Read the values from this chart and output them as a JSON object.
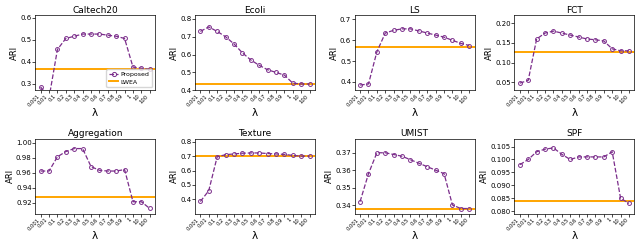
{
  "x_labels": [
    "0.001",
    "0.01",
    "0.1",
    "0.2",
    "0.3",
    "0.4",
    "0.5",
    "0.6",
    "0.7",
    "0.8",
    "0.9",
    "1",
    "10",
    "100"
  ],
  "proposed_color": "#7B2D8B",
  "lwea_color": "#FFA500",
  "plots": [
    {
      "title": "Caltech20",
      "ylabel": "ARI",
      "xlabel": "λ",
      "ylim": [
        0.27,
        0.61
      ],
      "yticks": [
        0.3,
        0.4,
        0.5,
        0.6
      ],
      "proposed": [
        0.285,
        0.235,
        0.455,
        0.505,
        0.515,
        0.525,
        0.525,
        0.525,
        0.52,
        0.515,
        0.505,
        0.375,
        0.37,
        0.365
      ],
      "lwea": 0.365,
      "show_legend": true
    },
    {
      "title": "Ecoli",
      "ylabel": "ARI",
      "xlabel": "λ",
      "ylim": [
        0.4,
        0.82
      ],
      "yticks": [
        0.4,
        0.5,
        0.6,
        0.7,
        0.8
      ],
      "proposed": [
        0.73,
        0.755,
        0.73,
        0.7,
        0.66,
        0.61,
        0.57,
        0.54,
        0.515,
        0.5,
        0.485,
        0.44,
        0.435,
        0.435
      ],
      "lwea": 0.435,
      "show_legend": false
    },
    {
      "title": "LS",
      "ylabel": "ARI",
      "xlabel": "λ",
      "ylim": [
        0.36,
        0.72
      ],
      "yticks": [
        0.4,
        0.5,
        0.6,
        0.7
      ],
      "proposed": [
        0.385,
        0.39,
        0.545,
        0.635,
        0.648,
        0.655,
        0.655,
        0.645,
        0.635,
        0.625,
        0.615,
        0.6,
        0.585,
        0.575
      ],
      "lwea": 0.568,
      "show_legend": false
    },
    {
      "title": "FCT",
      "ylabel": "ARI",
      "xlabel": "λ",
      "ylim": [
        0.03,
        0.22
      ],
      "yticks": [
        0.05,
        0.1,
        0.15,
        0.2
      ],
      "proposed": [
        0.048,
        0.055,
        0.16,
        0.175,
        0.18,
        0.175,
        0.17,
        0.165,
        0.16,
        0.158,
        0.155,
        0.135,
        0.13,
        0.13
      ],
      "lwea": 0.128,
      "show_legend": false
    },
    {
      "title": "Aggregation",
      "ylabel": "ARI",
      "xlabel": "λ",
      "ylim": [
        0.905,
        1.005
      ],
      "yticks": [
        0.92,
        0.94,
        0.96,
        0.98,
        1.0
      ],
      "proposed": [
        0.962,
        0.962,
        0.981,
        0.988,
        0.992,
        0.992,
        0.968,
        0.963,
        0.962,
        0.962,
        0.964,
        0.921,
        0.921,
        0.912
      ],
      "lwea": 0.928,
      "show_legend": false
    },
    {
      "title": "Texture",
      "ylabel": "ARI",
      "xlabel": "λ",
      "ylim": [
        0.3,
        0.82
      ],
      "yticks": [
        0.4,
        0.5,
        0.6,
        0.7,
        0.8
      ],
      "proposed": [
        0.385,
        0.46,
        0.695,
        0.71,
        0.715,
        0.72,
        0.722,
        0.722,
        0.718,
        0.715,
        0.712,
        0.705,
        0.7,
        0.7
      ],
      "lwea": 0.7,
      "show_legend": false
    },
    {
      "title": "UMIST",
      "ylabel": "ARI",
      "xlabel": "λ",
      "ylim": [
        0.335,
        0.378
      ],
      "yticks": [
        0.34,
        0.35,
        0.36,
        0.37
      ],
      "proposed": [
        0.342,
        0.358,
        0.37,
        0.37,
        0.369,
        0.368,
        0.366,
        0.364,
        0.362,
        0.36,
        0.358,
        0.34,
        0.338,
        0.338
      ],
      "lwea": 0.338,
      "show_legend": false
    },
    {
      "title": "SPF",
      "ylabel": "ARI",
      "xlabel": "λ",
      "ylim": [
        0.079,
        0.108
      ],
      "yticks": [
        0.08,
        0.085,
        0.09,
        0.095,
        0.1,
        0.105
      ],
      "proposed": [
        0.098,
        0.1,
        0.103,
        0.104,
        0.1045,
        0.102,
        0.1,
        0.101,
        0.101,
        0.101,
        0.101,
        0.103,
        0.085,
        0.083
      ],
      "lwea": 0.084,
      "show_legend": false
    }
  ]
}
